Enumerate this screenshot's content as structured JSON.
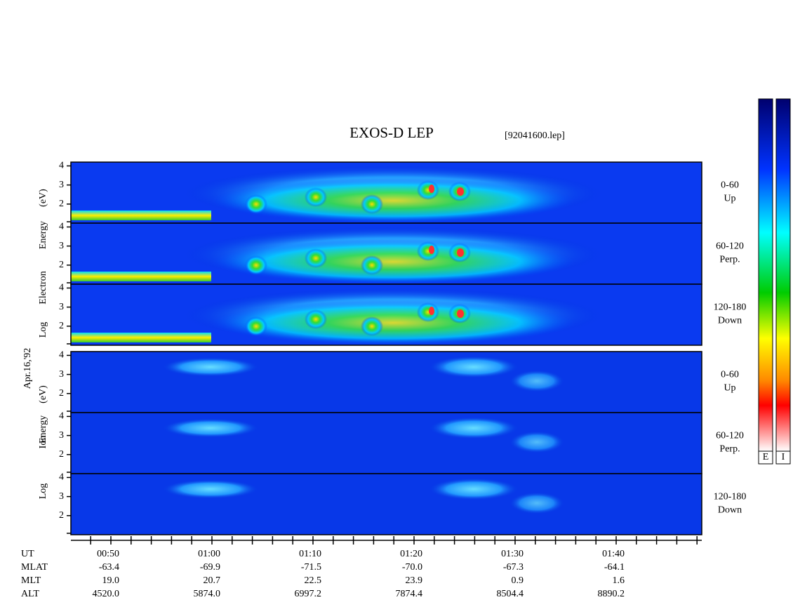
{
  "title": "EXOS-D LEP",
  "file": "[92041600.lep]",
  "date": "Apr.16,'92",
  "electron_label": [
    "Log",
    "Electron",
    "Energy",
    "(eV)"
  ],
  "ion_label": [
    "Log",
    "Ion",
    "Energy",
    "(eV)"
  ],
  "ylim": [
    1,
    4.2
  ],
  "panels": [
    {
      "species": "electron",
      "pitch": "0-60",
      "direction": "Up",
      "yticks": [
        2,
        3,
        4
      ]
    },
    {
      "species": "electron",
      "pitch": "60-120",
      "direction": "Perp.",
      "yticks": [
        2,
        3,
        4
      ]
    },
    {
      "species": "electron",
      "pitch": "120-180",
      "direction": "Down",
      "yticks": [
        2,
        3,
        4
      ]
    },
    {
      "species": "ion",
      "pitch": "0-60",
      "direction": "Up",
      "yticks": [
        2,
        3,
        4
      ]
    },
    {
      "species": "ion",
      "pitch": "60-120",
      "direction": "Perp.",
      "yticks": [
        2,
        3,
        4
      ]
    },
    {
      "species": "ion",
      "pitch": "120-180",
      "direction": "Down",
      "yticks": [
        2,
        3,
        4
      ]
    }
  ],
  "ephemeris": {
    "rows": [
      {
        "label": "UT",
        "values": [
          "00:50",
          "01:00",
          "01:10",
          "01:20",
          "01:30",
          "01:40"
        ]
      },
      {
        "label": "MLAT",
        "values": [
          "-63.4",
          "-69.9",
          "-71.5",
          "-70.0",
          "-67.3",
          "-64.1"
        ]
      },
      {
        "label": "MLT",
        "values": [
          "19.0",
          "20.7",
          "22.5",
          "23.9",
          "0.9",
          "1.6"
        ]
      },
      {
        "label": "ALT",
        "values": [
          "4520.0",
          "5874.0",
          "6997.2",
          "7874.4",
          "8504.4",
          "8890.2"
        ]
      }
    ]
  },
  "colorbar_labels": [
    "E",
    "I"
  ]
}
